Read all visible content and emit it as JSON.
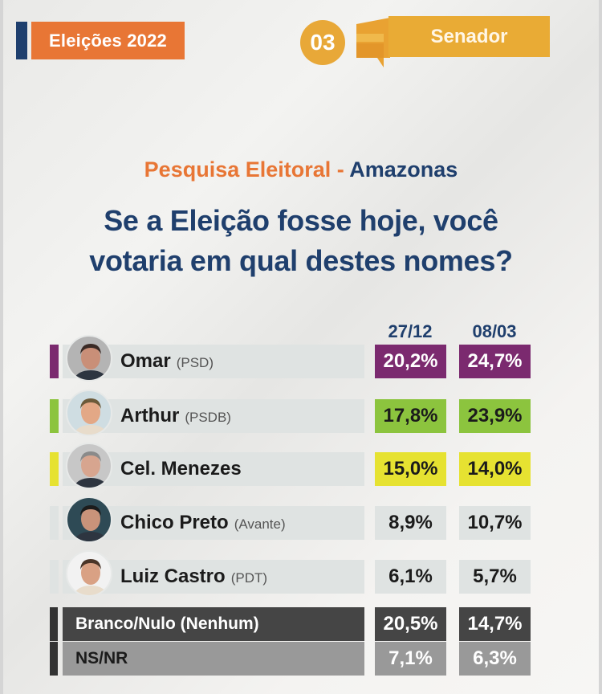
{
  "header": {
    "elections_label": "Eleições 2022",
    "number": "03",
    "office": "Senador",
    "colors": {
      "navy": "#1e3f6e",
      "orange": "#e87635",
      "gold": "#e9ab35"
    }
  },
  "title": {
    "survey": "Pesquisa Eleitoral",
    "separator": " - ",
    "region": "Amazonas",
    "question_line1": "Se a Eleição fosse hoje, você",
    "question_line2": "votaria em qual destes nomes?"
  },
  "columns": [
    "27/12",
    "08/03"
  ],
  "rows": [
    {
      "name": "Omar",
      "party": "(PSD)",
      "v1": "20,2%",
      "v2": "24,7%",
      "color": "#7b2a6f",
      "text_color": "#ffffff",
      "avatar": "omar-photo"
    },
    {
      "name": "Arthur",
      "party": "(PSDB)",
      "v1": "17,8%",
      "v2": "23,9%",
      "color": "#8cc43e",
      "text_color": "#1b1b1b",
      "avatar": "arthur-photo"
    },
    {
      "name": "Cel. Menezes",
      "party": "",
      "v1": "15,0%",
      "v2": "14,0%",
      "color": "#e6e231",
      "text_color": "#1b1b1b",
      "avatar": "menezes-photo"
    },
    {
      "name": "Chico Preto",
      "party": "(Avante)",
      "v1": "8,9%",
      "v2": "10,7%",
      "color": "#dfe3e2",
      "text_color": "#1b1b1b",
      "avatar": "chico-photo"
    },
    {
      "name": "Luiz Castro",
      "party": "(PDT)",
      "v1": "6,1%",
      "v2": "5,7%",
      "color": "#dfe3e2",
      "text_color": "#1b1b1b",
      "avatar": "luiz-photo"
    },
    {
      "name": "Branco/Nulo (Nenhum)",
      "party": "",
      "v1": "20,5%",
      "v2": "14,7%",
      "color": "#454545",
      "text_color": "#ffffff"
    },
    {
      "name": "NS/NR",
      "party": "",
      "v1": "7,1%",
      "v2": "6,3%",
      "color": "#999999",
      "text_color": "#ffffff"
    }
  ],
  "chart_data": {
    "type": "table",
    "title": "Pesquisa Eleitoral - Amazonas: Se a Eleição fosse hoje, você votaria em qual destes nomes?",
    "subtitle": "Eleições 2022 - 03 Senador",
    "categories": [
      "Omar (PSD)",
      "Arthur (PSDB)",
      "Cel. Menezes",
      "Chico Preto (Avante)",
      "Luiz Castro (PDT)",
      "Branco/Nulo (Nenhum)",
      "NS/NR"
    ],
    "series": [
      {
        "name": "27/12",
        "values": [
          20.2,
          17.8,
          15.0,
          8.9,
          6.1,
          20.5,
          7.1
        ]
      },
      {
        "name": "08/03",
        "values": [
          24.7,
          23.9,
          14.0,
          10.7,
          5.7,
          14.7,
          6.3
        ]
      }
    ],
    "unit": "%"
  }
}
